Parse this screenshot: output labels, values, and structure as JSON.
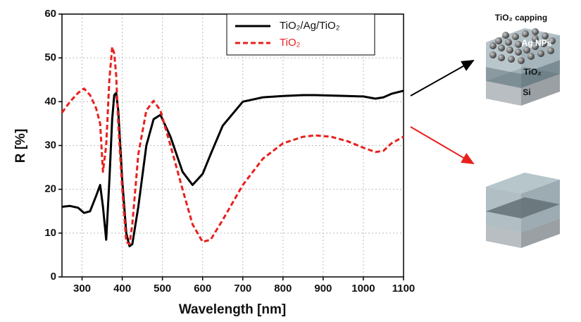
{
  "chart_data": {
    "type": "line",
    "xlabel": "Wavelength [nm]",
    "ylabel": "R [%]",
    "x": [
      250,
      270,
      290,
      305,
      320,
      335,
      345,
      352,
      360,
      368,
      375,
      380,
      385,
      390,
      400,
      410,
      418,
      425,
      440,
      460,
      478,
      495,
      520,
      550,
      575,
      600,
      620,
      650,
      700,
      750,
      800,
      850,
      880,
      920,
      960,
      1000,
      1030,
      1050,
      1070,
      1100
    ],
    "series": [
      {
        "name": "TiO₂/Ag/TiO₂",
        "color": "#000000",
        "linestyle": "solid",
        "values": [
          16,
          16.2,
          15.8,
          14.6,
          15,
          18.5,
          21,
          16,
          8.5,
          22,
          36,
          41.5,
          42,
          38,
          22,
          10,
          7,
          7.5,
          16,
          30,
          36,
          37,
          32,
          24,
          21,
          23.5,
          28,
          34.5,
          40,
          41,
          41.3,
          41.5,
          41.5,
          41.4,
          41.3,
          41.2,
          40.7,
          41,
          41.8,
          42.5
        ]
      },
      {
        "name": "TiO₂",
        "color": "#e8201c",
        "linestyle": "dashed",
        "values": [
          37.5,
          40,
          42,
          43,
          41.5,
          38.5,
          35,
          24,
          30,
          45,
          52.5,
          51,
          46,
          35,
          20,
          8,
          7.5,
          12,
          28,
          38,
          40.2,
          38,
          30,
          20,
          12,
          8,
          8.5,
          13,
          21,
          27,
          30.5,
          32,
          32.3,
          32,
          31,
          29.5,
          28.5,
          28.8,
          30.5,
          32
        ]
      }
    ],
    "xlim": [
      250,
      1100
    ],
    "xticks": [
      300,
      400,
      500,
      600,
      700,
      800,
      900,
      1000,
      1100
    ],
    "ylim": [
      0,
      60
    ],
    "yticks": [
      0,
      10,
      20,
      30,
      40,
      50,
      60
    ],
    "grid": true,
    "legend": "top",
    "diagram_labels": [
      "TiO₂ capping",
      "Ag NPs",
      "TiO₂",
      "Si"
    ]
  }
}
